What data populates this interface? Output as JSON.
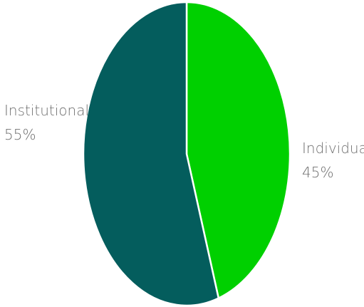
{
  "chart_data": {
    "type": "pie",
    "title": "",
    "slices": [
      {
        "label": "Individual",
        "value": 45,
        "value_label": "45%",
        "color": "#00d000"
      },
      {
        "label": "Institutional",
        "value": 55,
        "value_label": "55%",
        "color": "#045d5d"
      }
    ],
    "start_angle": "12 o'clock",
    "direction": "clockwise",
    "slice_border_color": "#ffffff"
  }
}
